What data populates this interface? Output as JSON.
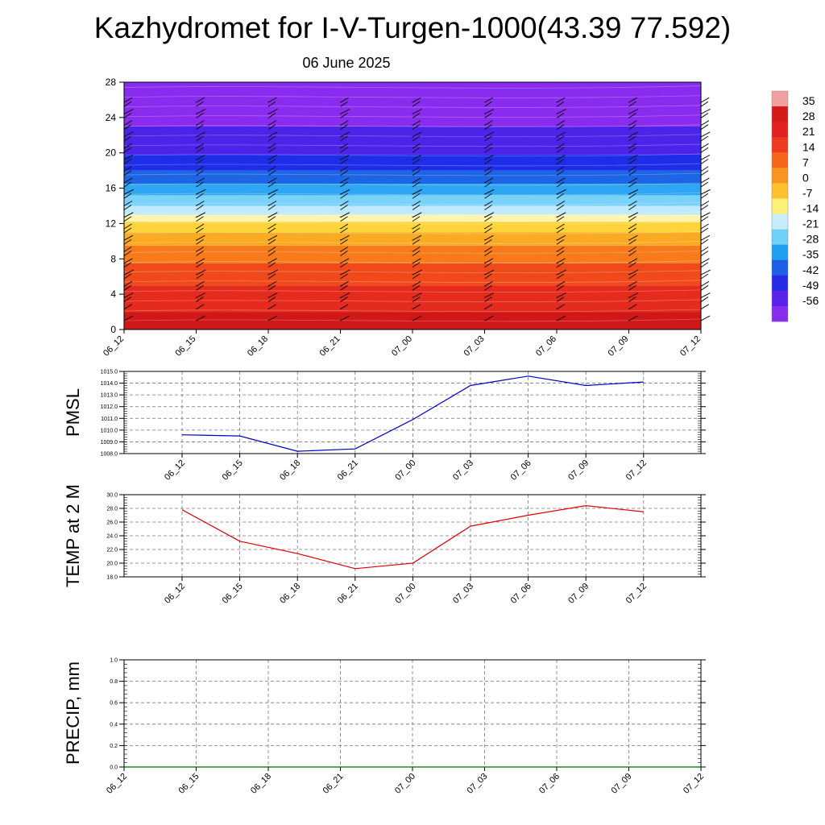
{
  "title": "Kazhydromet for I-V-Turgen-1000(43.39 77.592)",
  "date": "06 June 2025",
  "chart_data": [
    {
      "type": "heatmap",
      "time_labels": [
        "06_12",
        "06_15",
        "06_18",
        "06_21",
        "07_00",
        "07_03",
        "07_06",
        "07_09",
        "07_12"
      ],
      "y_ticks": [
        0,
        4,
        8,
        12,
        16,
        20,
        24,
        28
      ],
      "ylim": [
        0,
        28
      ],
      "colorbar_labels": [
        "35",
        "28",
        "21",
        "14",
        "7",
        "0",
        "-7",
        "-14",
        "-21",
        "-28",
        "-35",
        "-42",
        "-49",
        "-56"
      ],
      "colorbar_colors": [
        "#f2a0a0",
        "#d51a1a",
        "#e22222",
        "#ee3b1f",
        "#f6651a",
        "#fa9320",
        "#fcc12c",
        "#fff07a",
        "#c9ecff",
        "#6fd0f8",
        "#1f9ff2",
        "#1c5ee8",
        "#2a2ae6",
        "#5a22ea",
        "#8a2bf0"
      ],
      "layer_colors": [
        {
          "from": 0,
          "to": 2,
          "color": "#d01818"
        },
        {
          "from": 2,
          "to": 5,
          "color": "#e52b1e"
        },
        {
          "from": 5,
          "to": 7.5,
          "color": "#f14a1a"
        },
        {
          "from": 7.5,
          "to": 9.5,
          "color": "#f87a1a"
        },
        {
          "from": 9.5,
          "to": 11,
          "color": "#fbaa24"
        },
        {
          "from": 11,
          "to": 12.2,
          "color": "#fdd43a"
        },
        {
          "from": 12.2,
          "to": 13,
          "color": "#fff5b0"
        },
        {
          "from": 13,
          "to": 14,
          "color": "#bfe9ff"
        },
        {
          "from": 14,
          "to": 15.2,
          "color": "#78d2fa"
        },
        {
          "from": 15.2,
          "to": 16.5,
          "color": "#2fa6f4"
        },
        {
          "from": 16.5,
          "to": 18,
          "color": "#1c66e6"
        },
        {
          "from": 18,
          "to": 19.8,
          "color": "#1e2ee8"
        },
        {
          "from": 19.8,
          "to": 23,
          "color": "#4a24e8"
        },
        {
          "from": 23,
          "to": 28,
          "color": "#8a2bf0"
        }
      ]
    },
    {
      "type": "line",
      "ylabel": "PMSL",
      "x": [
        "06_12",
        "06_15",
        "06_18",
        "06_21",
        "07_00",
        "07_03",
        "07_06",
        "07_09",
        "07_12"
      ],
      "values": [
        1009.6,
        1009.5,
        1008.2,
        1008.4,
        1010.9,
        1013.8,
        1014.6,
        1013.8,
        1014.1
      ],
      "y_ticks": [
        "1008.0",
        "1009.0",
        "1010.0",
        "1011.0",
        "1012.0",
        "1013.0",
        "1014.0",
        "1015.0"
      ],
      "ylim": [
        1008.0,
        1015.0
      ],
      "color": "#0000cc"
    },
    {
      "type": "line",
      "ylabel": "TEMP at 2 M",
      "x": [
        "06_12",
        "06_15",
        "06_18",
        "06_21",
        "07_00",
        "07_03",
        "07_06",
        "07_09",
        "07_12"
      ],
      "values": [
        27.8,
        23.2,
        21.4,
        19.2,
        20.0,
        25.4,
        27.0,
        28.4,
        27.5
      ],
      "y_ticks": [
        "18.0",
        "20.0",
        "22.0",
        "24.0",
        "26.0",
        "28.0",
        "30.0"
      ],
      "ylim": [
        18.0,
        30.0
      ],
      "color": "#dd0000"
    },
    {
      "type": "line",
      "ylabel": "PRECIP, mm",
      "x": [
        "06_12",
        "06_15",
        "06_18",
        "06_21",
        "07_00",
        "07_03",
        "07_06",
        "07_09",
        "07_12"
      ],
      "values": [
        0,
        0,
        0,
        0,
        0,
        0,
        0,
        0,
        0
      ],
      "y_ticks": [
        "0.0",
        "0.2",
        "0.4",
        "0.6",
        "0.8",
        "1.0"
      ],
      "ylim": [
        0,
        1.0
      ],
      "color": "#006600"
    }
  ]
}
